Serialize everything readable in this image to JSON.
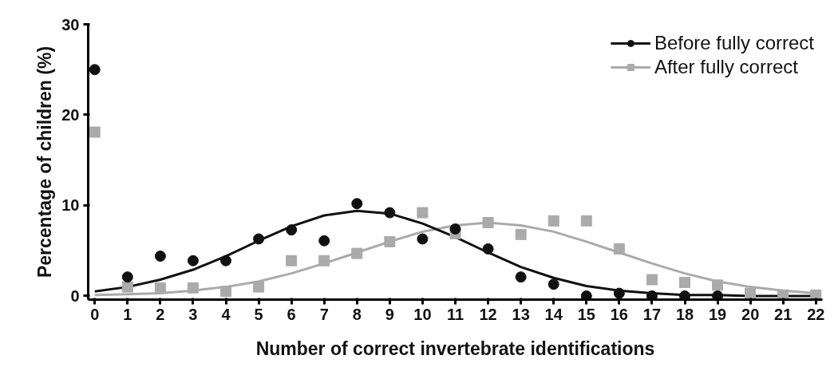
{
  "chart_data": {
    "type": "scatter",
    "xlabel": "Number of correct invertebrate identifications",
    "ylabel": "Percentage of children (%)",
    "x": [
      0,
      1,
      2,
      3,
      4,
      5,
      6,
      7,
      8,
      9,
      10,
      11,
      12,
      13,
      14,
      15,
      16,
      17,
      18,
      19,
      20,
      21,
      22
    ],
    "series": [
      {
        "name": "Before fully correct",
        "color": "#111111",
        "marker": "circle",
        "values": [
          25,
          2.1,
          4.4,
          3.9,
          3.9,
          6.3,
          7.3,
          6.1,
          10.2,
          9.2,
          6.3,
          7.4,
          5.2,
          2.1,
          1.3,
          0,
          0.3,
          0,
          0,
          0,
          null,
          null,
          null
        ]
      },
      {
        "name": "After fully correct",
        "color": "#aaaaaa",
        "marker": "square",
        "values": [
          18.1,
          1.0,
          0.9,
          0.9,
          0.5,
          1.0,
          3.9,
          3.9,
          4.7,
          6.0,
          9.2,
          6.9,
          8.1,
          6.8,
          8.3,
          8.3,
          5.2,
          1.8,
          1.5,
          1.2,
          0.3,
          0.1,
          0.1
        ]
      },
      {
        "type": "line",
        "color": "#111111",
        "marker": "none",
        "line_style": "solid",
        "values": [
          0.5,
          1.0,
          1.8,
          2.9,
          4.4,
          6.1,
          7.7,
          8.9,
          9.4,
          9.1,
          8.0,
          6.5,
          4.8,
          3.2,
          2.0,
          1.1,
          0.6,
          0.3,
          0.1,
          0.1,
          0.0,
          0.0,
          0.0
        ]
      },
      {
        "type": "line",
        "color": "#aaaaaa",
        "marker": "none",
        "line_style": "solid",
        "values": [
          0.1,
          0.2,
          0.3,
          0.6,
          1.0,
          1.6,
          2.5,
          3.6,
          4.8,
          6.0,
          7.1,
          7.8,
          8.1,
          7.8,
          7.1,
          6.0,
          4.8,
          3.6,
          2.5,
          1.6,
          1.0,
          0.6,
          0.3
        ]
      }
    ],
    "xlim": [
      -0.2,
      22.2
    ],
    "ylim": [
      -0.4,
      30
    ],
    "xticks": [
      0,
      1,
      2,
      3,
      4,
      5,
      6,
      7,
      8,
      9,
      10,
      11,
      12,
      13,
      14,
      15,
      16,
      17,
      18,
      19,
      20,
      21,
      22
    ],
    "yticks": [
      0,
      10,
      20,
      30
    ],
    "grid": false,
    "legend": "top right"
  }
}
